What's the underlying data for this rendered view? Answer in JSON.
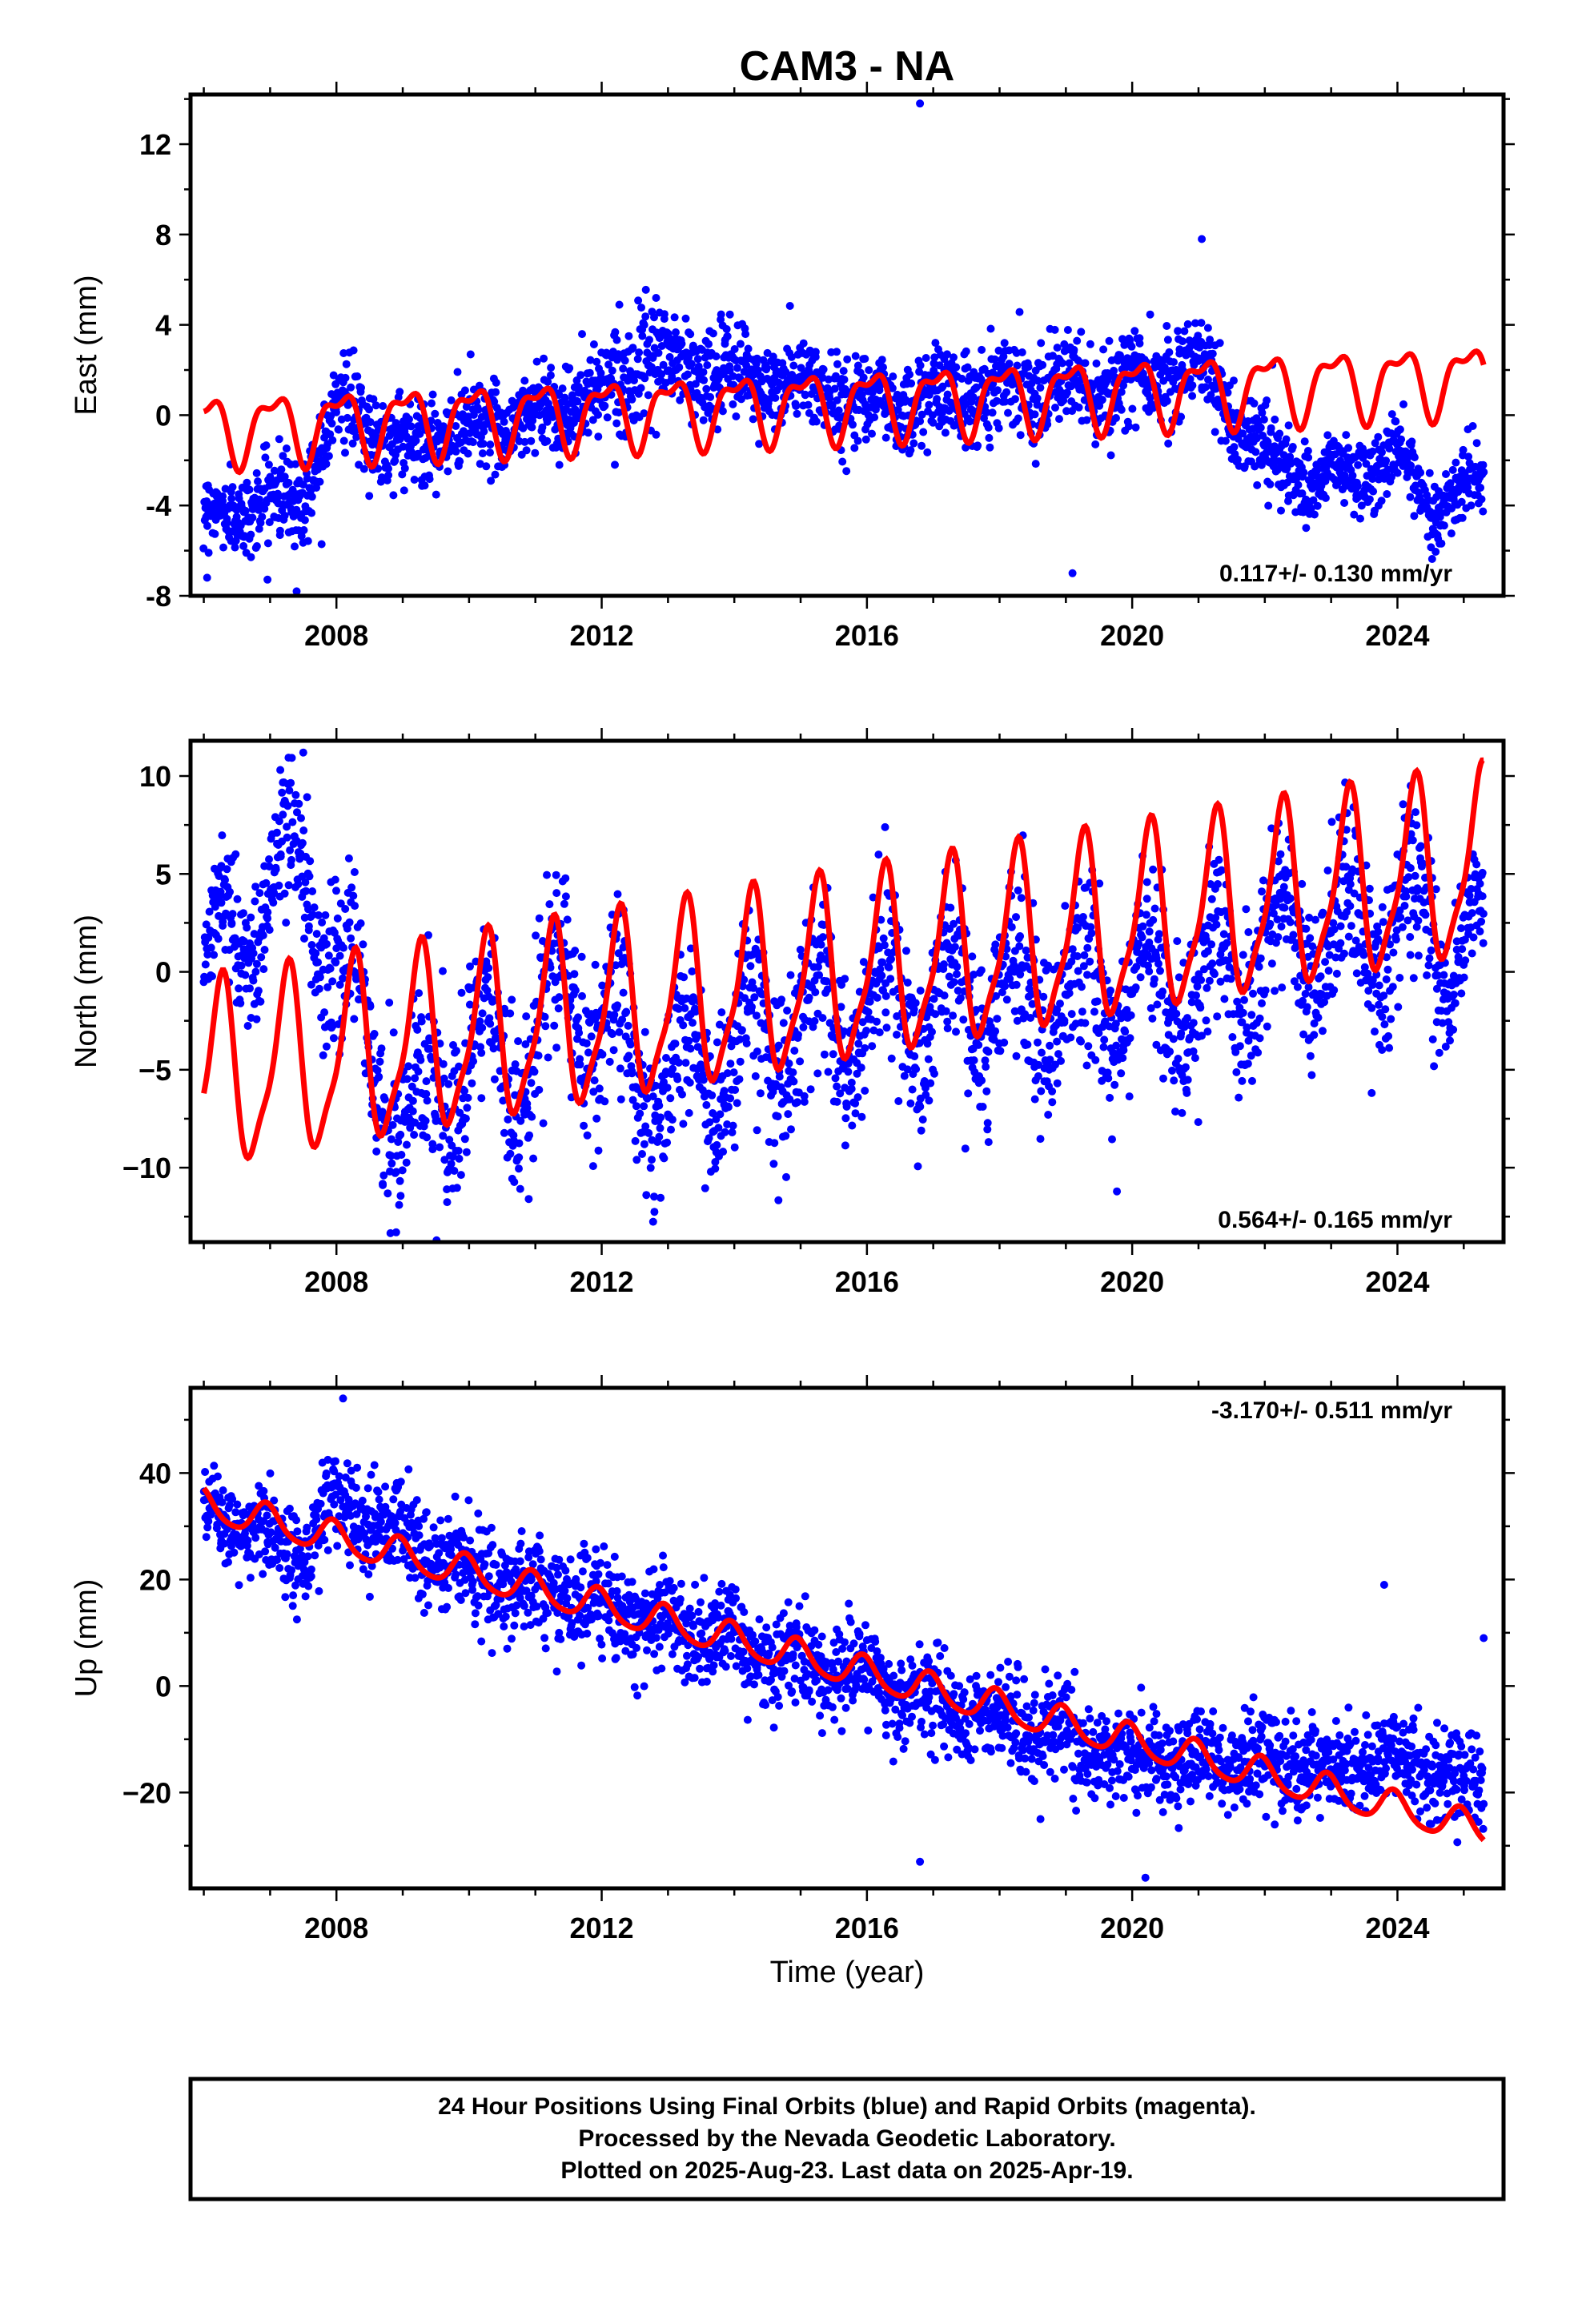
{
  "title": "CAM3 - NA",
  "xlabel": "Time (year)",
  "x_ticks": [
    "2008",
    "2012",
    "2016",
    "2020",
    "2024"
  ],
  "footer": {
    "line1": "24 Hour Positions Using Final Orbits (blue) and Rapid Orbits (magenta).",
    "line2": "Processed by the Nevada Geodetic Laboratory.",
    "line3": "Plotted on 2025-Aug-23. Last data on 2025-Apr-19."
  },
  "colors": {
    "final_orbits": "#0000ff",
    "model": "#ff0000",
    "frame": "#000000"
  },
  "chart_data": [
    {
      "type": "scatter",
      "ylabel": "East (mm)",
      "rate_label": "0.117+/- 0.130 mm/yr",
      "xlim": [
        2005.8,
        2025.6
      ],
      "ylim": [
        -8,
        14.2
      ],
      "y_ticks": [
        -8,
        -4,
        0,
        4,
        8,
        12
      ],
      "y_tick_labels": [
        "-8",
        "-4",
        "0",
        "4",
        "8",
        "12"
      ],
      "series": [
        {
          "role": "observations",
          "x": [
            2006.0,
            2007.5,
            2008.0,
            2009.0,
            2010.0,
            2011.0,
            2012.0,
            2012.6,
            2013.5,
            2014.5,
            2015.5,
            2016.5,
            2017.5,
            2018.5,
            2019.5,
            2020.5,
            2021.0,
            2021.5,
            2022.0,
            2022.6,
            2023.5,
            2024.0,
            2024.6,
            2025.3
          ],
          "y": [
            -4.5,
            -3.5,
            0.5,
            -1.5,
            -0.5,
            0.0,
            1.0,
            2.5,
            2.0,
            1.5,
            1.0,
            0.5,
            1.0,
            1.5,
            1.0,
            2.0,
            2.5,
            0.0,
            -1.5,
            -3.0,
            -2.5,
            -2.0,
            -4.0,
            -3.0
          ],
          "amplitude": [
            1.2,
            2.0,
            1.8,
            1.8,
            1.8,
            1.8,
            1.8,
            2.0,
            2.0,
            1.8,
            1.8,
            1.8,
            1.8,
            1.8,
            1.8,
            1.8,
            1.8,
            1.8,
            1.8,
            1.5,
            1.5,
            1.5,
            1.5,
            1.5
          ],
          "outliers": [
            [
              2016.8,
              13.8
            ],
            [
              2021.05,
              7.8
            ],
            [
              2019.1,
              -7.0
            ],
            [
              2007.4,
              -7.8
            ],
            [
              2006.05,
              -7.2
            ]
          ]
        },
        {
          "role": "model",
          "start": 2006.0,
          "end": 2025.3,
          "intercept": -0.6,
          "rate": 0.117,
          "amp1": 1.4,
          "amp2": 0.6,
          "phase1": 0.2,
          "phase2": 0.35
        }
      ]
    },
    {
      "type": "scatter",
      "ylabel": "North (mm)",
      "rate_label": "0.564+/- 0.165 mm/yr",
      "xlim": [
        2005.8,
        2025.6
      ],
      "ylim": [
        -13.8,
        11.8
      ],
      "y_ticks": [
        -10,
        -5,
        0,
        5,
        10
      ],
      "y_tick_labels": [
        "−10",
        "−5",
        "0",
        "5",
        "10"
      ],
      "series": [
        {
          "role": "observations",
          "x": [
            2006.0,
            2007.5,
            2008.0,
            2008.5,
            2009.0,
            2010.0,
            2011.0,
            2011.5,
            2012.0,
            2013.0,
            2014.0,
            2015.0,
            2016.0,
            2017.0,
            2018.0,
            2019.0,
            2020.0,
            2021.0,
            2022.0,
            2023.0,
            2024.0,
            2025.3
          ],
          "y": [
            0.0,
            6.0,
            0.0,
            -3.0,
            -8.0,
            -5.0,
            -4.0,
            0.0,
            -3.0,
            -6.0,
            -4.0,
            -3.0,
            -2.0,
            -2.0,
            -1.5,
            -1.5,
            -1.0,
            -0.5,
            0.5,
            1.5,
            2.5,
            1.0
          ],
          "amplitude": [
            2.0,
            4.0,
            4.0,
            4.0,
            4.0,
            4.0,
            4.0,
            4.0,
            4.0,
            4.0,
            4.0,
            4.0,
            4.0,
            4.0,
            4.0,
            4.0,
            4.0,
            4.0,
            4.0,
            4.0,
            4.0,
            2.5
          ],
          "outliers": [
            [
              2007.5,
              11.2
            ],
            [
              2008.9,
              -13.3
            ],
            [
              2010.9,
              -11.6
            ],
            [
              2024.2,
              9.5
            ]
          ]
        },
        {
          "role": "model",
          "start": 2006.0,
          "end": 2025.3,
          "intercept": -5.5,
          "rate": 0.564,
          "amp1": 4.5,
          "amp2": 1.2,
          "phase1": 0.0,
          "phase2": 0.3
        }
      ]
    },
    {
      "type": "scatter",
      "ylabel": "Up (mm)",
      "rate_label": "-3.170+/- 0.511 mm/yr",
      "xlim": [
        2005.8,
        2025.6
      ],
      "ylim": [
        -38,
        56
      ],
      "y_ticks": [
        -20,
        0,
        20,
        40
      ],
      "y_tick_labels": [
        "−20",
        "0",
        "20",
        "40"
      ],
      "series": [
        {
          "role": "observations",
          "x": [
            2006.0,
            2007.5,
            2008.0,
            2009.0,
            2010.0,
            2011.0,
            2012.0,
            2013.0,
            2014.0,
            2015.0,
            2016.0,
            2017.0,
            2018.0,
            2019.0,
            2020.0,
            2021.0,
            2022.0,
            2023.0,
            2024.0,
            2025.3
          ],
          "y": [
            33.0,
            25.0,
            35.0,
            28.0,
            22.0,
            18.0,
            15.0,
            12.0,
            8.0,
            5.0,
            2.0,
            -3.0,
            -6.0,
            -10.0,
            -14.0,
            -14.0,
            -14.0,
            -16.0,
            -14.0,
            -18.0
          ],
          "amplitude": [
            5.0,
            8.0,
            10.0,
            8.0,
            8.0,
            8.0,
            8.0,
            8.0,
            8.0,
            8.0,
            8.0,
            8.0,
            8.0,
            8.0,
            8.0,
            8.0,
            8.0,
            8.0,
            8.0,
            8.0
          ],
          "outliers": [
            [
              2008.1,
              54.0
            ],
            [
              2016.8,
              -33.0
            ],
            [
              2020.2,
              -36.0
            ],
            [
              2023.8,
              19.0
            ],
            [
              2025.3,
              9.0
            ]
          ]
        },
        {
          "role": "model",
          "start": 2006.0,
          "end": 2025.3,
          "intercept": 34.0,
          "rate": -3.17,
          "amp1": 3.0,
          "amp2": 0.5,
          "phase1": 0.3,
          "phase2": 0.2
        }
      ]
    }
  ]
}
